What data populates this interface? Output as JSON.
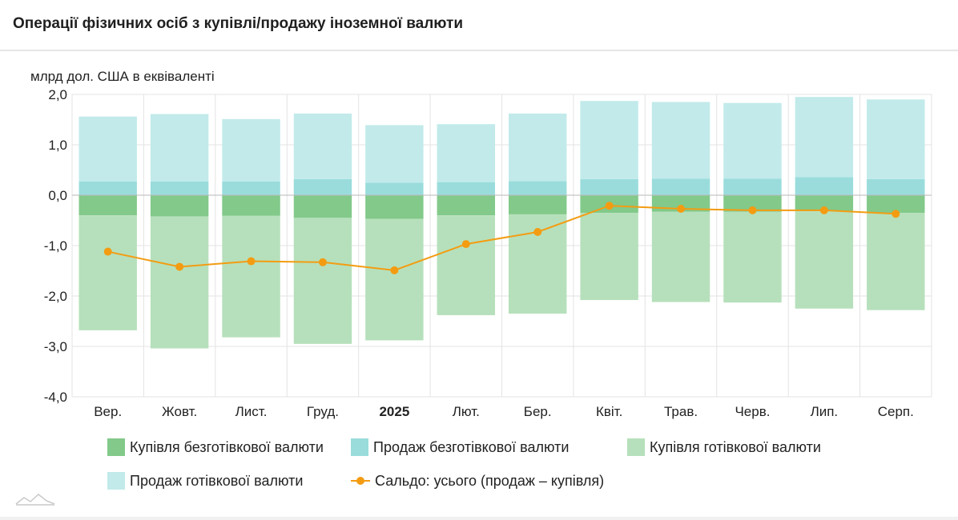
{
  "header": {
    "title": "Операції фізичних осіб з купівлі/продажу іноземної валюти"
  },
  "chart_data": {
    "type": "bar",
    "stacked": true,
    "ylabel": "млрд дол. США в еквіваленті",
    "ylim": [
      -4.0,
      2.0
    ],
    "yticks": [
      "2,0",
      "1,0",
      "0,0",
      "-1,0",
      "-2,0",
      "-3,0",
      "-4,0"
    ],
    "ytick_values": [
      2,
      1,
      0,
      -1,
      -2,
      -3,
      -4
    ],
    "categories": [
      "Вер.",
      "Жовт.",
      "Лист.",
      "Груд.",
      "2025",
      "Лют.",
      "Бер.",
      "Квіт.",
      "Трав.",
      "Черв.",
      "Лип.",
      "Серп."
    ],
    "bold_categories": [
      "2025"
    ],
    "grid": true,
    "legend_position": "bottom",
    "series": [
      {
        "name": "Купівля безготівкової валюти",
        "kind": "bar",
        "color": "#82c98a",
        "values": [
          -0.4,
          -0.42,
          -0.41,
          -0.45,
          -0.47,
          -0.4,
          -0.38,
          -0.35,
          -0.33,
          -0.33,
          -0.32,
          -0.35
        ]
      },
      {
        "name": "Продаж безготівкової валюти",
        "kind": "bar",
        "color": "#9adcdc",
        "values": [
          0.27,
          0.27,
          0.27,
          0.32,
          0.25,
          0.26,
          0.28,
          0.32,
          0.33,
          0.33,
          0.36,
          0.32
        ]
      },
      {
        "name": "Купівля готівкової валюти",
        "kind": "bar",
        "color": "#b6e0bb",
        "values": [
          -2.28,
          -2.62,
          -2.41,
          -2.5,
          -2.41,
          -1.98,
          -1.97,
          -1.73,
          -1.79,
          -1.8,
          -1.93,
          -1.93
        ]
      },
      {
        "name": "Продаж готівкової валюти",
        "kind": "bar",
        "color": "#c2eaea",
        "values": [
          1.29,
          1.34,
          1.24,
          1.3,
          1.14,
          1.15,
          1.34,
          1.55,
          1.52,
          1.5,
          1.59,
          1.58
        ]
      },
      {
        "name": "Сальдо: усього (продаж – купівля)",
        "kind": "line",
        "color": "#f39c12",
        "values": [
          -1.12,
          -1.42,
          -1.31,
          -1.33,
          -1.49,
          -0.97,
          -0.73,
          -0.21,
          -0.27,
          -0.3,
          -0.3,
          -0.37
        ]
      }
    ]
  }
}
